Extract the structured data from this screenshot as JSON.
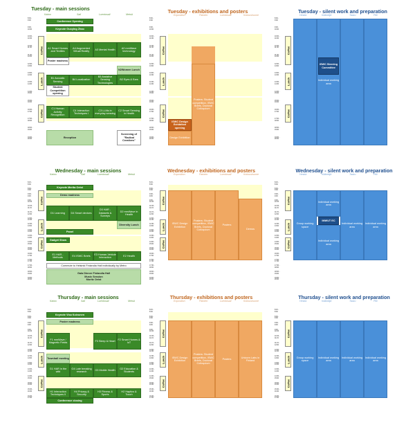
{
  "colors": {
    "green_title": "#2e6a18",
    "orange_title": "#c0661e",
    "blue_title": "#1f4f8f",
    "yellow": "#ffffcc",
    "dark_green": "#3a8a28",
    "orange": "#f0a862",
    "blue": "#4a90d9"
  },
  "rooms": {
    "main": [
      "Kaiwo",
      "Sali",
      "Luentosali",
      "Metsä"
    ],
    "expo": [
      "Exposition",
      "Patoten",
      "Luentosali",
      "Kokoushuone"
    ],
    "silent": [
      "Hestia",
      "Kääntäjä",
      "Tasku",
      "Piili"
    ]
  },
  "strip_labels": {
    "coffee": "Coffee",
    "lunch": "Lunch"
  },
  "tuesday": {
    "main_title": "Tuesday - main sessions",
    "expo_title": "Tuesday - exhibitions and posters",
    "silent_title": "Tuesday - silent work and preparation",
    "times": [
      "8:30 -\n9:00",
      "9:00 -\n10:00",
      "10:00 -\n10:30",
      "10:30 -\n11:30",
      "11:30 -\n12:00",
      "12:00 -\n13:00",
      "13:00 -\n13:30",
      "13:30 -\n14:30",
      "14:30 -\n15:00",
      "15:00 -\n16:00",
      "16:00 -\n17:00",
      "17:00 -\n18:00",
      "18:00 -\n19:00",
      "19:00 -\n20:00"
    ],
    "main": {
      "conference_opening": "Conference Opening",
      "keynote": "Keynote Guoying Zhao",
      "a1": "A1 Smart Homes and Textiles",
      "a4": "A4 Augmented Virtual Reality",
      "a3": "A3 Mental Health",
      "a2": "A2 mmWave technology",
      "poster_madness": "Poster madness",
      "n2women": "N2Women Lunch",
      "b1": "B1 Acoustic Sensing",
      "b4": "B4 Localization",
      "b3": "B3 Assistive Sensing Technologies",
      "b2": "B2 Eyes & Ears",
      "student_competition": "Student Competition opening",
      "c1": "C1 Human Activity Recognition",
      "c4": "C4 Interaction Techniques I",
      "c3": "C3 LLMs in everyday sensing",
      "c2": "C2 Smart Sensing in Health",
      "reception": "Reception",
      "screening": "Screening of \"Radical Creatives\""
    },
    "expo": {
      "posters": "Posters: Student competition, ISWC Briefs, Doctoral Colloquium",
      "design_opening": "ISWC Design Exhibition opening",
      "design_exhibition": "Design Exhibition"
    },
    "silent": {
      "steering": "ISWC Steering Committee",
      "working": "Individual working area"
    }
  },
  "wednesday": {
    "main_title": "Wednesday - main sessions",
    "expo_title": "Wednesday - exhibitions and posters",
    "silent_title": "Wednesday - silent work and preparation",
    "times": [
      "8:15 -\n8:30",
      "8:30 -\n9:00",
      "9:00 -\n9:45",
      "9:45 -\n10:15",
      "10:15 -\n11:15",
      "11:15 -\n12:00",
      "12:00 -\n12:30",
      "12:30 -\n13:00",
      "13:00 -\n13:30",
      "13:30 -\n14:00",
      "14:00 -\n15:00",
      "15:00 -\n16:00",
      "16:00 -\n17:00",
      "17:00 -\n17:30",
      "17:30 -\n18:00",
      "18:00 -\n19:00",
      "19:00 -\n20:00"
    ],
    "main": {
      "keynote": "Keynote Merita Oeist",
      "demo_madness": "Demo madness",
      "d1": "D1 Learning",
      "d4": "D4 Smart devices",
      "d3": "D3 HAR - Datasets & Surveys",
      "d2": "D2 mmWave in Health",
      "diversity": "Diversity Lunch",
      "panel": "Panel",
      "gadget": "Gadget Show",
      "e1": "E1 HAR - Methods",
      "e4": "E4 ISWC Briefs",
      "e3": "E3 Human-Vehicle Interaction",
      "e2": "E2 Health",
      "commute": "Commute to Helsinki Finlandia Hall individually by Metro",
      "gala": "Gala Dinner Finlandia Hall\nMusic Session\nMoritz Oeist"
    },
    "expo": {
      "design": "ISWC Design Exhibition",
      "posters": "Posters: Student competition, ISWC Briefs, Doctoral Colloquium",
      "posters_short": "Posters",
      "demos": "Demos"
    },
    "silent": {
      "group": "Group working space",
      "working": "Individual working area",
      "imwut": "IMWUT EC"
    }
  },
  "thursday": {
    "main_title": "Thursday - main sessions",
    "expo_title": "Thursday - exhibitions and posters",
    "silent_title": "Thursday - silent work and preparation",
    "times": [
      "8:15 -\n8:30",
      "8:30 -\n9:00",
      "9:00 -\n9:45",
      "9:45 -\n10:15",
      "10:15 -\n11:15",
      "11:15 -\n12:00",
      "12:00 -\n12:30",
      "12:30 -\n13:00",
      "13:00 -\n13:30",
      "13:30 -\n14:30",
      "14:30 -\n15:00",
      "15:00 -\n15:30",
      "15:30 -\n16:30",
      "16:30 -\n17:00"
    ],
    "main": {
      "keynote": "Keynote Visa Koivunen",
      "poster_madness": "Poster madness",
      "f1": "F1 mmWave / Magnetic Fields",
      "f3": "F3 Sleep & Heart",
      "f2": "F2 Smart Homes & IoT",
      "townhall": "Townhall meeting",
      "g1": "G1 HAR in the wild",
      "g4": "G4 Late breaking research",
      "g3": "G3 Mobile Health",
      "g2": "G2 Education & Students",
      "h1": "H1 Interaction Techniques II",
      "h4": "H4 Privacy & Security",
      "h3": "H3 Fitness & Sports",
      "h2": "H2 Haptics & Touch",
      "closing": "Conference closing"
    },
    "expo": {
      "design": "ISWC Design Exhibition",
      "posters": "Posters: Student competition, ISWC Briefs, Doctoral Colloquium",
      "posters_short": "Posters",
      "unicorn": "Unicorn Labs in Finland"
    },
    "silent": {
      "group": "Group working space",
      "working": "Individual working area"
    }
  }
}
